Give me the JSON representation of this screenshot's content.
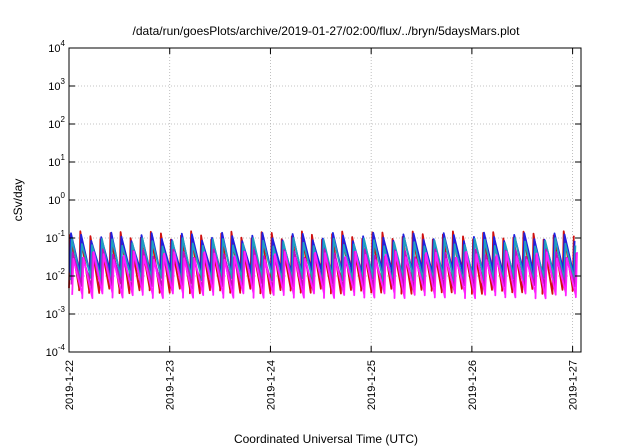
{
  "chart_data": {
    "type": "line",
    "title": "/data/run/goesPlots/archive/2019-01-27/02:00/flux/../bryn/5daysMars.plot",
    "xlabel": "Coordinated Universal Time (UTC)",
    "ylabel": "cSv/day",
    "yscale": "log",
    "ylim": [
      0.0001,
      10000
    ],
    "y_ticks": [
      {
        "value": 0.0001,
        "base": "10",
        "exp": "-4"
      },
      {
        "value": 0.001,
        "base": "10",
        "exp": "-3"
      },
      {
        "value": 0.01,
        "base": "10",
        "exp": "-2"
      },
      {
        "value": 0.1,
        "base": "10",
        "exp": "-1"
      },
      {
        "value": 1,
        "base": "10",
        "exp": "0"
      },
      {
        "value": 10,
        "base": "10",
        "exp": "1"
      },
      {
        "value": 100,
        "base": "10",
        "exp": "2"
      },
      {
        "value": 1000,
        "base": "10",
        "exp": "3"
      },
      {
        "value": 10000,
        "base": "10",
        "exp": "4"
      }
    ],
    "xlim": [
      "2019-01-22T00:00",
      "2019-01-27T02:00"
    ],
    "x_ticks": [
      {
        "value": "2019-01-22T00:00",
        "label": "2019-1-22"
      },
      {
        "value": "2019-01-23T00:00",
        "label": "2019-1-23"
      },
      {
        "value": "2019-01-24T00:00",
        "label": "2019-1-24"
      },
      {
        "value": "2019-01-25T00:00",
        "label": "2019-1-25"
      },
      {
        "value": "2019-01-26T00:00",
        "label": "2019-1-26"
      },
      {
        "value": "2019-01-27T00:00",
        "label": "2019-1-27"
      }
    ],
    "grid": true,
    "legend": "none",
    "pattern": "sawtooth, period about 0.1 day",
    "series": [
      {
        "color": "#d01010",
        "level": [
          0.12,
          0.004
        ]
      },
      {
        "color": "#2020e0",
        "level": [
          0.11,
          0.012
        ]
      },
      {
        "color": "#20a0c0",
        "level": [
          0.08,
          0.008
        ]
      },
      {
        "color": "#c010c0",
        "level": [
          0.04,
          0.005
        ]
      },
      {
        "color": "#ff20ff",
        "level": [
          0.035,
          0.003
        ]
      }
    ]
  }
}
